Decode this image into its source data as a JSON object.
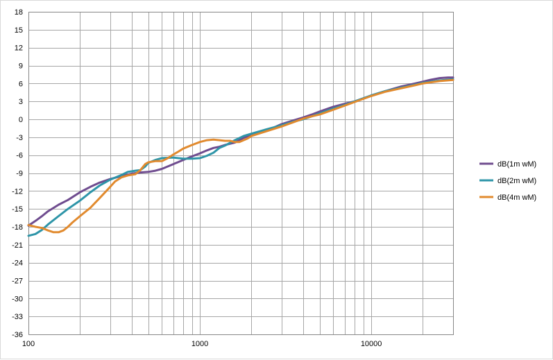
{
  "chart_data": {
    "type": "line",
    "xscale": "log",
    "xlim": [
      100,
      30000
    ],
    "ylim": [
      -36,
      18
    ],
    "grid": true,
    "legend_position": "right",
    "x_tick_labels": [
      "100",
      "1000",
      "10000"
    ],
    "y_ticks": [
      18,
      15,
      12,
      9,
      6,
      3,
      0,
      -3,
      -6,
      -9,
      -12,
      -15,
      -18,
      -21,
      -24,
      -27,
      -30,
      -33,
      -36
    ],
    "series": [
      {
        "name": "dB(1m wM)",
        "color": "#6f4c8f",
        "points": [
          [
            100,
            -17.8
          ],
          [
            110,
            -17
          ],
          [
            120,
            -16.2
          ],
          [
            130,
            -15.4
          ],
          [
            150,
            -14.3
          ],
          [
            170,
            -13.5
          ],
          [
            200,
            -12.2
          ],
          [
            230,
            -11.3
          ],
          [
            260,
            -10.6
          ],
          [
            300,
            -10
          ],
          [
            350,
            -9.5
          ],
          [
            400,
            -9.1
          ],
          [
            450,
            -8.9
          ],
          [
            500,
            -8.8
          ],
          [
            550,
            -8.6
          ],
          [
            600,
            -8.3
          ],
          [
            700,
            -7.5
          ],
          [
            800,
            -6.8
          ],
          [
            900,
            -6.2
          ],
          [
            1000,
            -5.7
          ],
          [
            1100,
            -5.2
          ],
          [
            1200,
            -4.8
          ],
          [
            1300,
            -4.6
          ],
          [
            1400,
            -4.3
          ],
          [
            1600,
            -3.9
          ],
          [
            1800,
            -3.1
          ],
          [
            2000,
            -2.6
          ],
          [
            2500,
            -1.8
          ],
          [
            3000,
            -0.8
          ],
          [
            3500,
            -0.2
          ],
          [
            4000,
            0.3
          ],
          [
            4500,
            0.8
          ],
          [
            5000,
            1.3
          ],
          [
            6000,
            2.1
          ],
          [
            7000,
            2.6
          ],
          [
            8000,
            3
          ],
          [
            10000,
            4
          ],
          [
            12000,
            4.7
          ],
          [
            15000,
            5.5
          ],
          [
            18000,
            6
          ],
          [
            20000,
            6.3
          ],
          [
            22000,
            6.6
          ],
          [
            25000,
            6.9
          ],
          [
            28000,
            7
          ],
          [
            30000,
            7
          ]
        ]
      },
      {
        "name": "dB(2m wM)",
        "color": "#2e95a8",
        "points": [
          [
            100,
            -19.5
          ],
          [
            110,
            -19.2
          ],
          [
            120,
            -18.5
          ],
          [
            130,
            -17.6
          ],
          [
            150,
            -16.2
          ],
          [
            170,
            -15
          ],
          [
            200,
            -13.6
          ],
          [
            230,
            -12.2
          ],
          [
            260,
            -11.1
          ],
          [
            300,
            -10.1
          ],
          [
            350,
            -9.3
          ],
          [
            380,
            -8.8
          ],
          [
            420,
            -8.6
          ],
          [
            450,
            -8.5
          ],
          [
            480,
            -7.9
          ],
          [
            500,
            -7.3
          ],
          [
            550,
            -6.8
          ],
          [
            600,
            -6.5
          ],
          [
            700,
            -6.4
          ],
          [
            800,
            -6.6
          ],
          [
            900,
            -6.6
          ],
          [
            1000,
            -6.5
          ],
          [
            1100,
            -6.1
          ],
          [
            1200,
            -5.6
          ],
          [
            1300,
            -4.8
          ],
          [
            1400,
            -4.4
          ],
          [
            1600,
            -3.5
          ],
          [
            1800,
            -2.8
          ],
          [
            2000,
            -2.4
          ],
          [
            2500,
            -1.6
          ],
          [
            3000,
            -1
          ],
          [
            3500,
            -0.4
          ],
          [
            4000,
            0
          ],
          [
            4500,
            0.5
          ],
          [
            5000,
            1
          ],
          [
            6000,
            1.8
          ],
          [
            7000,
            2.4
          ],
          [
            8000,
            3
          ],
          [
            10000,
            4
          ],
          [
            12000,
            4.7
          ],
          [
            15000,
            5.3
          ],
          [
            18000,
            5.8
          ],
          [
            20000,
            6.1
          ],
          [
            25000,
            6.5
          ],
          [
            30000,
            6.7
          ]
        ]
      },
      {
        "name": "dB(4m wM)",
        "color": "#e18a2e",
        "points": [
          [
            100,
            -17.7
          ],
          [
            110,
            -18
          ],
          [
            120,
            -18.2
          ],
          [
            130,
            -18.6
          ],
          [
            140,
            -18.9
          ],
          [
            150,
            -18.9
          ],
          [
            160,
            -18.6
          ],
          [
            170,
            -18
          ],
          [
            180,
            -17.3
          ],
          [
            200,
            -16.2
          ],
          [
            230,
            -14.8
          ],
          [
            260,
            -13.2
          ],
          [
            300,
            -11.3
          ],
          [
            320,
            -10.4
          ],
          [
            350,
            -9.7
          ],
          [
            380,
            -9.4
          ],
          [
            420,
            -9.2
          ],
          [
            450,
            -8.5
          ],
          [
            480,
            -7.5
          ],
          [
            500,
            -7.2
          ],
          [
            550,
            -7
          ],
          [
            600,
            -7
          ],
          [
            650,
            -6.5
          ],
          [
            700,
            -5.9
          ],
          [
            750,
            -5.4
          ],
          [
            800,
            -4.9
          ],
          [
            900,
            -4.3
          ],
          [
            1000,
            -3.8
          ],
          [
            1100,
            -3.5
          ],
          [
            1200,
            -3.4
          ],
          [
            1300,
            -3.5
          ],
          [
            1400,
            -3.6
          ],
          [
            1500,
            -3.6
          ],
          [
            1600,
            -3.8
          ],
          [
            1700,
            -3.8
          ],
          [
            1800,
            -3.5
          ],
          [
            1900,
            -3.2
          ],
          [
            2000,
            -2.8
          ],
          [
            2500,
            -1.9
          ],
          [
            3000,
            -1.2
          ],
          [
            3500,
            -0.5
          ],
          [
            4000,
            0.1
          ],
          [
            4500,
            0.5
          ],
          [
            5000,
            0.8
          ],
          [
            6000,
            1.6
          ],
          [
            7000,
            2.3
          ],
          [
            8000,
            2.9
          ],
          [
            10000,
            3.9
          ],
          [
            12000,
            4.6
          ],
          [
            15000,
            5.2
          ],
          [
            18000,
            5.7
          ],
          [
            20000,
            6
          ],
          [
            25000,
            6.4
          ],
          [
            30000,
            6.6
          ]
        ]
      }
    ]
  }
}
